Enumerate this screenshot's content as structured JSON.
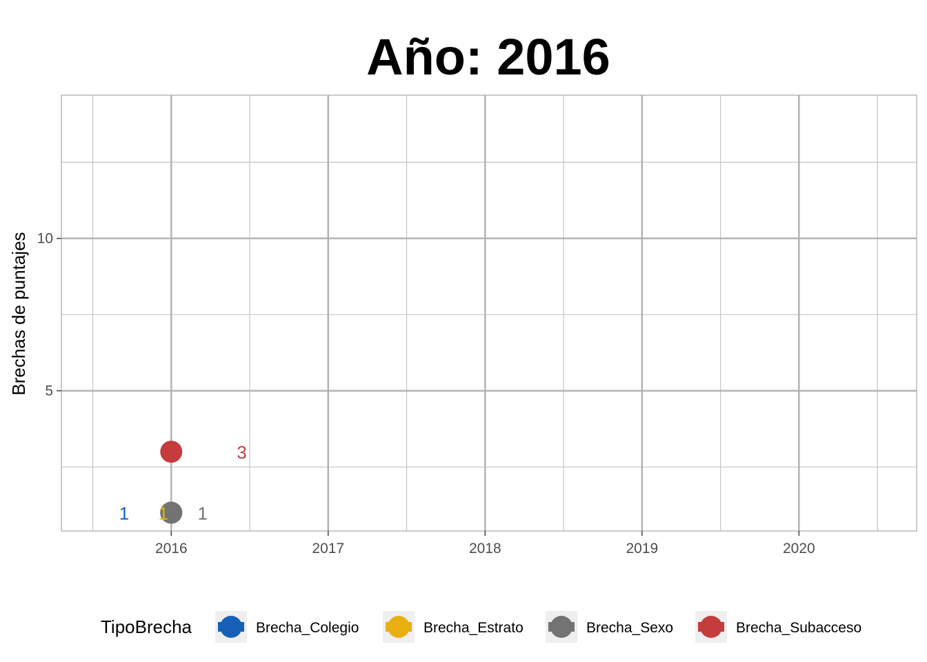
{
  "chart_data": {
    "type": "scatter",
    "title": "Año: 2016",
    "xlabel": "",
    "ylabel": "Brechas de puntajes",
    "xlim": [
      2015.3,
      2020.75
    ],
    "ylim": [
      0.4,
      14.7
    ],
    "x_ticks": [
      2016,
      2017,
      2018,
      2019,
      2020
    ],
    "x_tick_labels": [
      "2016",
      "2017",
      "2018",
      "2019",
      "2020"
    ],
    "y_ticks": [
      5,
      10
    ],
    "y_tick_labels": [
      "5",
      "10"
    ],
    "grid": true,
    "legend_title": "TipoBrecha",
    "legend_position": "bottom",
    "series": [
      {
        "name": "Brecha_Colegio",
        "color": "#1660b8",
        "x": [
          2016
        ],
        "y": [
          1
        ],
        "label": "1",
        "label_dx": -0.3
      },
      {
        "name": "Brecha_Estrato",
        "color": "#e8b010",
        "x": [
          2016
        ],
        "y": [
          1
        ],
        "label": "1",
        "label_dx": -0.05
      },
      {
        "name": "Brecha_Sexo",
        "color": "#737373",
        "x": [
          2016
        ],
        "y": [
          1
        ],
        "label": "1",
        "label_dx": 0.2
      },
      {
        "name": "Brecha_Subacceso",
        "color": "#c43c3c",
        "x": [
          2016
        ],
        "y": [
          3
        ],
        "label": "3",
        "label_dx": 0.45
      }
    ]
  }
}
